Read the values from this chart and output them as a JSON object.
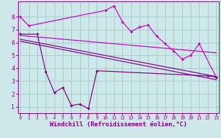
{
  "background_color": "#cce8e8",
  "grid_color": "#aacccc",
  "line_color_dark": "#880088",
  "line_color_bright": "#cc00cc",
  "xlabel": "Windchill (Refroidissement éolien,°C)",
  "xlabel_fontsize": 6.5,
  "ytick_labels": [
    "1",
    "2",
    "3",
    "4",
    "5",
    "6",
    "7",
    "8"
  ],
  "ytick_vals": [
    1,
    2,
    3,
    4,
    5,
    6,
    7,
    8
  ],
  "xtick_vals": [
    0,
    1,
    2,
    3,
    4,
    5,
    6,
    7,
    8,
    9,
    10,
    11,
    12,
    13,
    14,
    15,
    16,
    17,
    18,
    19,
    20,
    21,
    22,
    23
  ],
  "ylim": [
    0.5,
    9.2
  ],
  "xlim": [
    -0.3,
    23.3
  ],
  "s1_x": [
    0,
    1,
    10,
    11,
    12,
    13,
    14,
    15,
    16,
    17,
    18,
    19,
    20,
    21,
    23
  ],
  "s1_y": [
    8.0,
    7.3,
    8.5,
    8.85,
    7.6,
    6.85,
    7.2,
    7.35,
    6.5,
    5.9,
    5.35,
    4.7,
    5.0,
    5.9,
    3.3
  ],
  "s2_x": [
    0,
    2,
    3,
    4,
    5,
    6,
    7,
    8,
    9,
    22,
    23
  ],
  "s2_y": [
    6.65,
    6.65,
    3.7,
    2.1,
    2.5,
    1.1,
    1.2,
    0.85,
    3.8,
    3.4,
    3.3
  ],
  "trend1_x": [
    0,
    23
  ],
  "trend1_y": [
    6.55,
    5.2
  ],
  "trend2_x": [
    0,
    23
  ],
  "trend2_y": [
    6.25,
    3.35
  ],
  "trend3_x": [
    0,
    23
  ],
  "trend3_y": [
    6.1,
    3.1
  ]
}
